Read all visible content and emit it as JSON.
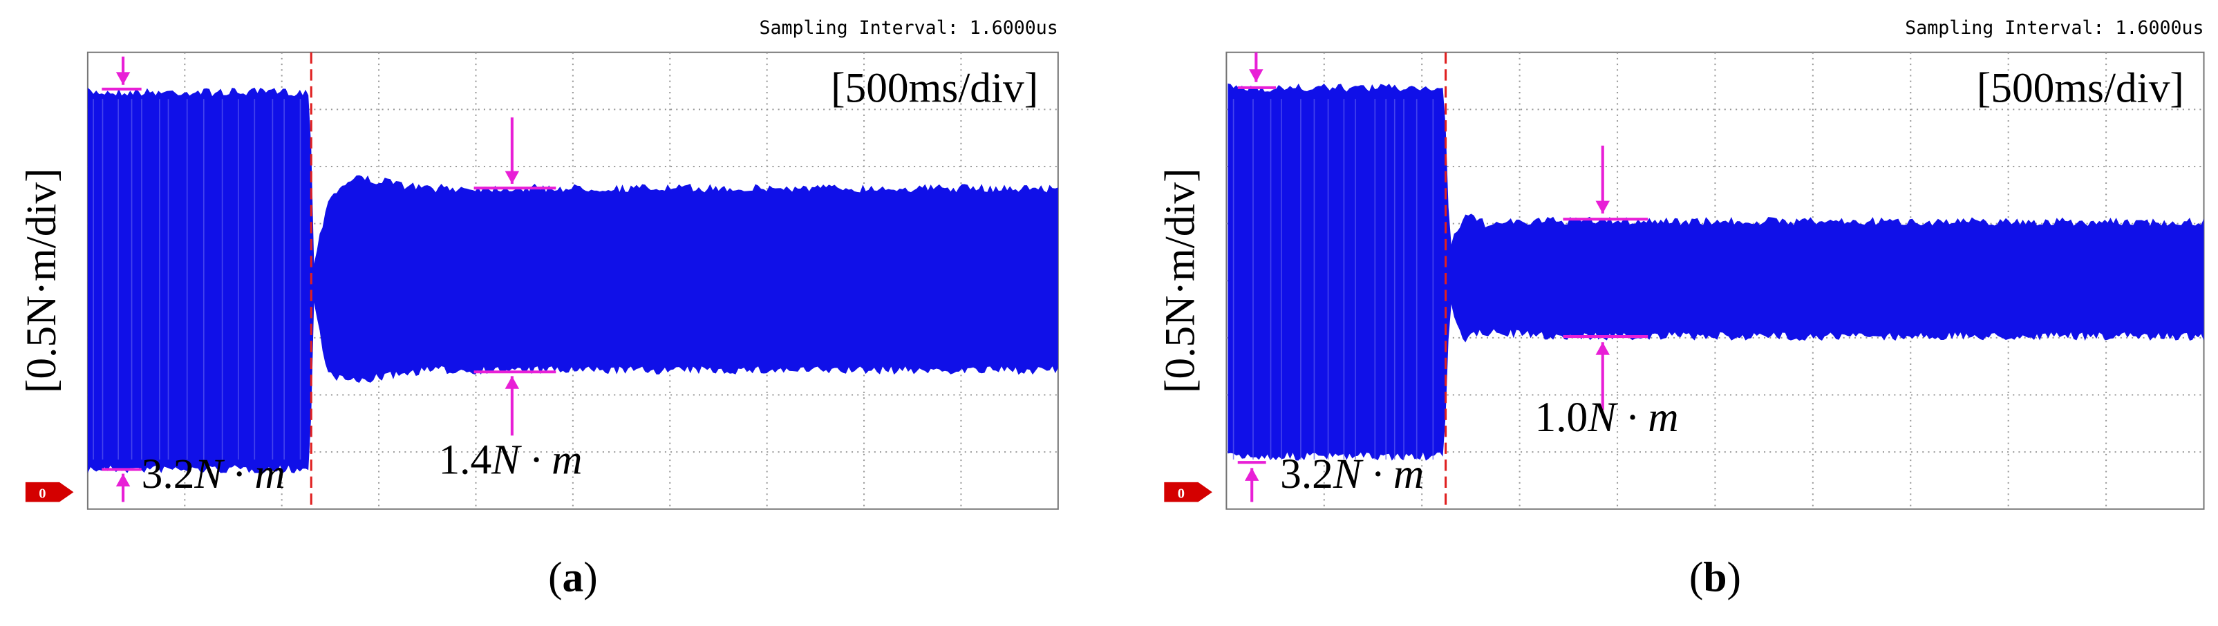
{
  "panels": [
    {
      "sampling": "Sampling Interval:  1.6000us",
      "timescale": "[500ms/div]",
      "ylabel": "[0.5N·m/div]",
      "marker": "0",
      "before": {
        "amplitude": "3.2",
        "unit": "N · m"
      },
      "after": {
        "amplitude": "1.4",
        "unit": "N · m"
      },
      "caption": "a"
    },
    {
      "sampling": "Sampling Interval:  1.6000us",
      "timescale": "[500ms/div]",
      "ylabel": "[0.5N·m/div]",
      "marker": "0",
      "before": {
        "amplitude": "3.2",
        "unit": "N · m"
      },
      "after": {
        "amplitude": "1.0",
        "unit": "N · m"
      },
      "caption": "b"
    }
  ]
}
